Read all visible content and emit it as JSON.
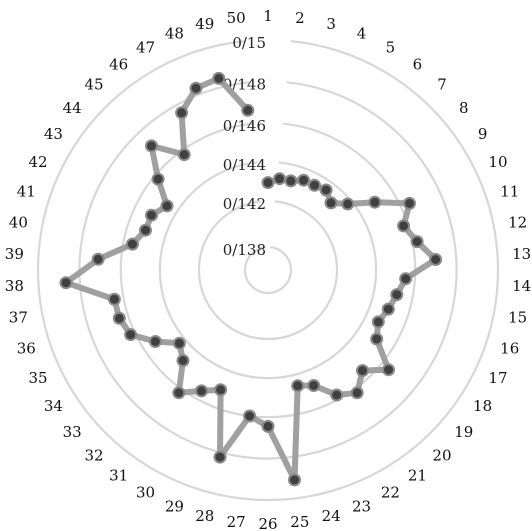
{
  "chart_data": {
    "type": "radar",
    "categories": [
      "1",
      "2",
      "3",
      "4",
      "5",
      "6",
      "7",
      "8",
      "9",
      "10",
      "11",
      "12",
      "13",
      "14",
      "15",
      "16",
      "17",
      "18",
      "19",
      "20",
      "21",
      "22",
      "23",
      "24",
      "25",
      "26",
      "27",
      "28",
      "29",
      "30",
      "31",
      "32",
      "33",
      "34",
      "35",
      "36",
      "37",
      "38",
      "39",
      "40",
      "41",
      "42",
      "43",
      "44",
      "45",
      "46",
      "47",
      "48",
      "49",
      "50"
    ],
    "ring_labels": [
      "0/138",
      "0/142",
      "0/144",
      "0/146",
      "0/148",
      "0/15"
    ],
    "series": [
      {
        "values": [
          0.38,
          0.4,
          0.4,
          0.42,
          0.42,
          0.43,
          0.4,
          0.45,
          0.55,
          0.68,
          0.62,
          0.66,
          0.73,
          0.6,
          0.57,
          0.55,
          0.53,
          0.56,
          0.68,
          0.6,
          0.66,
          0.62,
          0.54,
          0.52,
          0.92,
          0.68,
          0.64,
          0.84,
          0.56,
          0.6,
          0.66,
          0.54,
          0.5,
          0.58,
          0.66,
          0.68,
          0.68,
          0.88,
          0.74,
          0.6,
          0.56,
          0.56,
          0.52,
          0.62,
          0.74,
          0.62,
          0.78,
          0.85,
          0.86,
          0.7
        ]
      }
    ],
    "grid": true,
    "legend": "none",
    "colors": {
      "line": "#a0a0a0",
      "marker": "#404040",
      "marker_edge": "#8a8a8a",
      "grid": "#d7d7d7"
    }
  }
}
